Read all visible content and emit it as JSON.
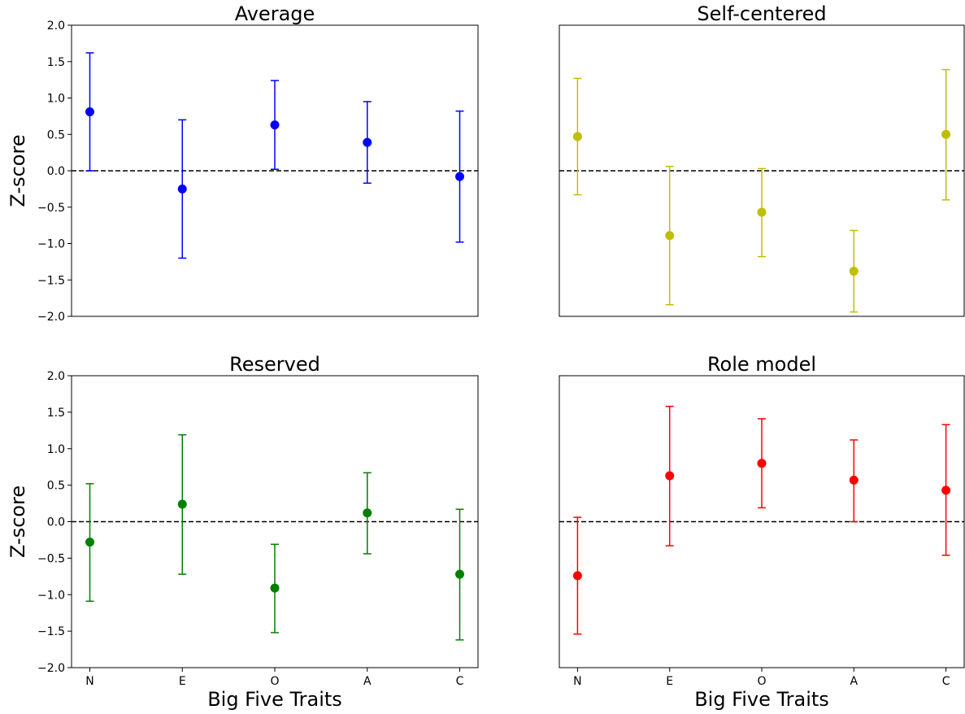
{
  "chart_data": [
    {
      "type": "scatter",
      "title": "Average",
      "ylabel": "Z-score",
      "xlabel": "",
      "categories": [
        "N",
        "E",
        "O",
        "A",
        "C"
      ],
      "yticks": [
        "2.0",
        "1.5",
        "1.0",
        "0.5",
        "0.0",
        "-0.5",
        "-1.0",
        "-1.5",
        "-2.0"
      ],
      "ylim": [
        -2.0,
        2.0
      ],
      "color": "#0000ff",
      "values": [
        0.81,
        -0.25,
        0.63,
        0.39,
        -0.08
      ],
      "err_low": [
        0.0,
        -1.2,
        0.02,
        -0.17,
        -0.98
      ],
      "err_high": [
        1.62,
        0.7,
        1.24,
        0.95,
        0.82
      ],
      "reference_line": 0.0
    },
    {
      "type": "scatter",
      "title": "Self-centered",
      "ylabel": "",
      "xlabel": "",
      "categories": [
        "N",
        "E",
        "O",
        "A",
        "C"
      ],
      "yticks": [],
      "ylim": [
        -2.0,
        2.0
      ],
      "color": "#bfbf00",
      "values": [
        0.47,
        -0.89,
        -0.57,
        -1.38,
        0.5
      ],
      "err_low": [
        -0.33,
        -1.84,
        -1.18,
        -1.94,
        -0.4
      ],
      "err_high": [
        1.27,
        0.06,
        0.03,
        -0.82,
        1.39
      ],
      "reference_line": 0.0
    },
    {
      "type": "scatter",
      "title": "Reserved",
      "ylabel": "Z-score",
      "xlabel": "Big Five Traits",
      "categories": [
        "N",
        "E",
        "O",
        "A",
        "C"
      ],
      "yticks": [
        "2.0",
        "1.5",
        "1.0",
        "0.5",
        "0.0",
        "-0.5",
        "-1.0",
        "-1.5",
        "-2.0"
      ],
      "ylim": [
        -2.0,
        2.0
      ],
      "color": "#008000",
      "values": [
        -0.28,
        0.24,
        -0.91,
        0.12,
        -0.72
      ],
      "err_low": [
        -1.09,
        -0.72,
        -1.52,
        -0.44,
        -1.62
      ],
      "err_high": [
        0.52,
        1.19,
        -0.31,
        0.67,
        0.17
      ],
      "reference_line": 0.0
    },
    {
      "type": "scatter",
      "title": "Role model",
      "ylabel": "",
      "xlabel": "Big Five Traits",
      "categories": [
        "N",
        "E",
        "O",
        "A",
        "C"
      ],
      "yticks": [],
      "ylim": [
        -2.0,
        2.0
      ],
      "color": "#ff0000",
      "values": [
        -0.74,
        0.63,
        0.8,
        0.57,
        0.43
      ],
      "err_low": [
        -1.54,
        -0.33,
        0.19,
        0.0,
        -0.46
      ],
      "err_high": [
        0.06,
        1.58,
        1.41,
        1.12,
        1.33
      ],
      "reference_line": 0.0
    }
  ]
}
